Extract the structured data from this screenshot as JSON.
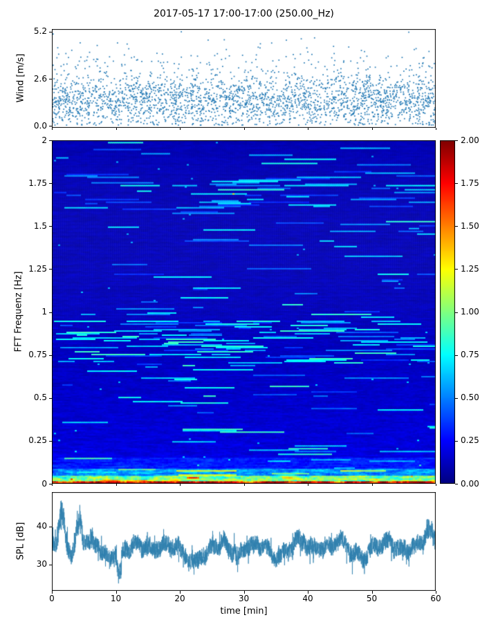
{
  "title": "2017-05-17 17:00-17:00 (250.00_Hz)",
  "chart_data": [
    {
      "type": "scatter",
      "id": "wind",
      "ylabel": "Wind [m/s]",
      "ytick_labels": [
        "0.0",
        "2.6",
        "5.2"
      ],
      "ytick_values": [
        0.0,
        2.6,
        5.2
      ],
      "ylim": [
        -0.1,
        5.35
      ],
      "xlim": [
        0,
        60
      ],
      "n_points": 2700,
      "point_color": "#1f77b4",
      "distribution": {
        "kind": "normal-mixture",
        "main_mean": 1.35,
        "main_std": 0.72,
        "tail_mean": 3.0,
        "tail_std": 0.9,
        "tail_frac": 0.12,
        "min": 0.05,
        "max": 5.2
      }
    },
    {
      "type": "heatmap",
      "id": "spectrogram",
      "ylabel": "FFT Frequenz [Hz]",
      "ytick_values": [
        0,
        0.25,
        0.5,
        0.75,
        1,
        1.25,
        1.5,
        1.75,
        2
      ],
      "ytick_labels": [
        "0",
        "0.25",
        "0.5",
        "0.75",
        "1",
        "1.25",
        "1.5",
        "1.75",
        "2"
      ],
      "ylim": [
        0,
        2
      ],
      "xlim": [
        0,
        60
      ],
      "vmin": 0,
      "vmax": 2,
      "colormap": "jet",
      "colorbar_tick_labels": [
        "0.00",
        "0.25",
        "0.50",
        "0.75",
        "1.00",
        "1.25",
        "1.50",
        "1.75",
        "2.00"
      ],
      "colorbar_tick_values": [
        0,
        0.25,
        0.5,
        0.75,
        1.0,
        1.25,
        1.5,
        1.75,
        2.0
      ],
      "background_level": {
        "base": 0.1,
        "low_freq_extra": 0.12,
        "decay_hz": 0.55
      },
      "bands": [
        {
          "freq_range": [
            0.0,
            0.02
          ],
          "level": 1.8,
          "desc": "red-orange band at lowest frequencies"
        },
        {
          "freq_range": [
            0.02,
            0.05
          ],
          "level": 1.0,
          "desc": "yellow-green band"
        },
        {
          "freq_range": [
            0.05,
            0.09
          ],
          "level": 0.55,
          "desc": "cyan band"
        },
        {
          "freq_range": [
            0.09,
            0.15
          ],
          "level": 0.3,
          "desc": "light blue speckle"
        }
      ],
      "streak_bands": [
        {
          "freq_range": [
            0.7,
            0.95
          ],
          "boost": 0.35,
          "desc": "cyan horizontal streaks around 0.8 Hz"
        },
        {
          "freq_range": [
            1.6,
            1.8
          ],
          "boost": 0.18,
          "desc": "faint streaks near 1.7 Hz"
        }
      ]
    },
    {
      "type": "line",
      "id": "spl",
      "ylabel": "SPL [dB]",
      "xlabel": "time [min]",
      "ytick_values": [
        30,
        40
      ],
      "ytick_labels": [
        "30",
        "40"
      ],
      "xtick_values": [
        0,
        10,
        20,
        30,
        40,
        50,
        60
      ],
      "xtick_labels": [
        "0",
        "10",
        "20",
        "30",
        "40",
        "50",
        "60"
      ],
      "ylim": [
        23,
        49
      ],
      "xlim": [
        0,
        60
      ],
      "line_color": "#2f7fae",
      "mean": 34.2,
      "jitter": 2.2,
      "peaks": [
        {
          "t": 1.6,
          "amp": 9.5,
          "w": 0.5
        },
        {
          "t": 4.2,
          "amp": 7.0,
          "w": 0.45
        },
        {
          "t": 10.6,
          "amp": -6.0,
          "w": 0.3
        },
        {
          "t": 29.0,
          "amp": -4.0,
          "w": 0.25
        },
        {
          "t": 59.0,
          "amp": 3.0,
          "w": 0.8
        }
      ]
    }
  ]
}
